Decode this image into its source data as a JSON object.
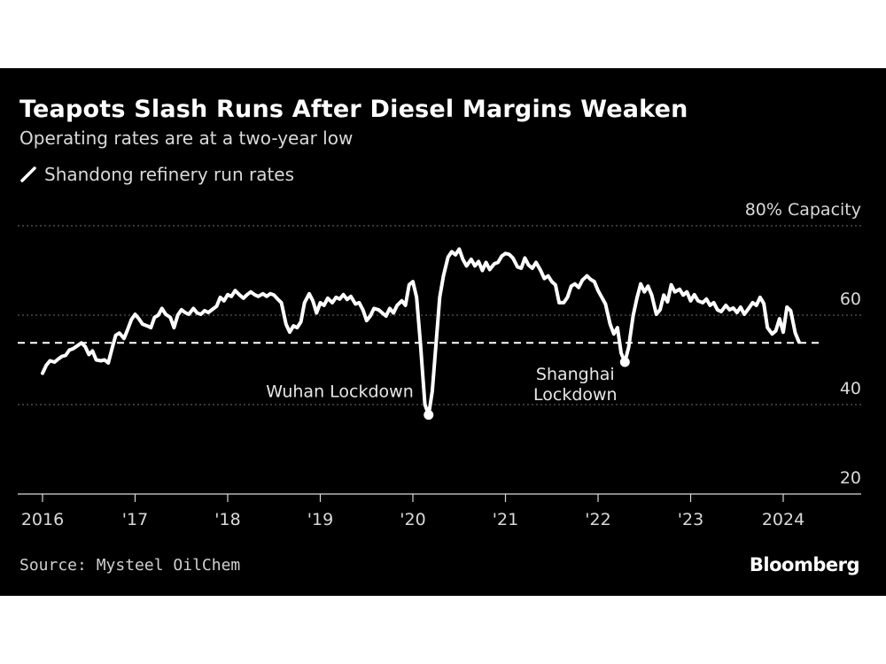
{
  "header": {
    "title": "Teapots Slash Runs After Diesel Margins Weaken",
    "subtitle": "Operating rates are at a two-year low"
  },
  "footer": {
    "source": "Source: Mysteel OilChem",
    "brand": "Bloomberg"
  },
  "colors": {
    "background": "#000000",
    "series": "#ffffff",
    "grid": "#6e6e6e"
  },
  "chart_data": {
    "type": "line",
    "title": "Teapots Slash Runs After Diesel Margins Weaken",
    "subtitle": "Operating rates are at a two-year low",
    "xlabel": "",
    "ylabel": "",
    "x_range": [
      2016.0,
      2024.85
    ],
    "ylim": [
      20,
      80
    ],
    "grid": true,
    "legend_position": "top-left",
    "x_ticks": [
      {
        "x": 2016,
        "label": "2016"
      },
      {
        "x": 2017,
        "label": "'17"
      },
      {
        "x": 2018,
        "label": "'18"
      },
      {
        "x": 2019,
        "label": "'19"
      },
      {
        "x": 2020,
        "label": "'20"
      },
      {
        "x": 2021,
        "label": "'21"
      },
      {
        "x": 2022,
        "label": "'22"
      },
      {
        "x": 2023,
        "label": "'23"
      },
      {
        "x": 2024,
        "label": "2024"
      }
    ],
    "y_ticks": [
      {
        "y": 20,
        "label": "20"
      },
      {
        "y": 40,
        "label": "40"
      },
      {
        "y": 60,
        "label": "60"
      },
      {
        "y": 80,
        "label": "80% Capacity"
      }
    ],
    "reference_line": {
      "y": 53.8,
      "style": "dashed"
    },
    "series": [
      {
        "name": "Shandong refinery run rates",
        "color": "#ffffff",
        "points": [
          [
            2016.0,
            47.0
          ],
          [
            2016.04,
            48.8
          ],
          [
            2016.08,
            49.8
          ],
          [
            2016.13,
            49.5
          ],
          [
            2016.17,
            50.2
          ],
          [
            2016.21,
            50.8
          ],
          [
            2016.25,
            51.0
          ],
          [
            2016.29,
            52.2
          ],
          [
            2016.33,
            52.5
          ],
          [
            2016.38,
            53.2
          ],
          [
            2016.42,
            53.8
          ],
          [
            2016.46,
            53.0
          ],
          [
            2016.5,
            51.2
          ],
          [
            2016.54,
            52.0
          ],
          [
            2016.58,
            50.0
          ],
          [
            2016.63,
            49.8
          ],
          [
            2016.67,
            50.0
          ],
          [
            2016.71,
            49.3
          ],
          [
            2016.75,
            52.5
          ],
          [
            2016.79,
            55.5
          ],
          [
            2016.83,
            56.0
          ],
          [
            2016.88,
            54.8
          ],
          [
            2016.92,
            56.8
          ],
          [
            2016.96,
            59.0
          ],
          [
            2017.0,
            60.2
          ],
          [
            2017.04,
            59.2
          ],
          [
            2017.08,
            58.0
          ],
          [
            2017.13,
            57.6
          ],
          [
            2017.17,
            57.2
          ],
          [
            2017.21,
            59.5
          ],
          [
            2017.25,
            60.0
          ],
          [
            2017.29,
            61.5
          ],
          [
            2017.33,
            60.2
          ],
          [
            2017.38,
            59.5
          ],
          [
            2017.42,
            57.2
          ],
          [
            2017.46,
            60.0
          ],
          [
            2017.5,
            61.2
          ],
          [
            2017.54,
            60.6
          ],
          [
            2017.58,
            60.2
          ],
          [
            2017.63,
            61.5
          ],
          [
            2017.67,
            60.5
          ],
          [
            2017.71,
            60.2
          ],
          [
            2017.75,
            61.0
          ],
          [
            2017.79,
            60.6
          ],
          [
            2017.83,
            61.2
          ],
          [
            2017.88,
            62.0
          ],
          [
            2017.92,
            64.0
          ],
          [
            2017.96,
            63.2
          ],
          [
            2018.0,
            64.6
          ],
          [
            2018.04,
            64.2
          ],
          [
            2018.08,
            65.5
          ],
          [
            2018.13,
            64.5
          ],
          [
            2018.17,
            63.8
          ],
          [
            2018.21,
            64.6
          ],
          [
            2018.25,
            65.2
          ],
          [
            2018.29,
            64.6
          ],
          [
            2018.33,
            64.2
          ],
          [
            2018.38,
            64.8
          ],
          [
            2018.42,
            64.2
          ],
          [
            2018.46,
            64.8
          ],
          [
            2018.5,
            64.5
          ],
          [
            2018.54,
            63.6
          ],
          [
            2018.58,
            62.8
          ],
          [
            2018.63,
            58.0
          ],
          [
            2018.67,
            56.2
          ],
          [
            2018.71,
            57.6
          ],
          [
            2018.75,
            57.2
          ],
          [
            2018.79,
            58.5
          ],
          [
            2018.83,
            62.8
          ],
          [
            2018.88,
            64.8
          ],
          [
            2018.92,
            63.2
          ],
          [
            2018.96,
            60.5
          ],
          [
            2019.0,
            62.8
          ],
          [
            2019.04,
            62.2
          ],
          [
            2019.08,
            63.8
          ],
          [
            2019.13,
            62.8
          ],
          [
            2019.17,
            64.0
          ],
          [
            2019.21,
            63.6
          ],
          [
            2019.25,
            64.6
          ],
          [
            2019.29,
            63.5
          ],
          [
            2019.33,
            64.2
          ],
          [
            2019.38,
            62.5
          ],
          [
            2019.42,
            62.8
          ],
          [
            2019.46,
            61.2
          ],
          [
            2019.5,
            58.8
          ],
          [
            2019.54,
            59.8
          ],
          [
            2019.58,
            61.5
          ],
          [
            2019.63,
            61.2
          ],
          [
            2019.67,
            60.5
          ],
          [
            2019.71,
            59.8
          ],
          [
            2019.75,
            61.5
          ],
          [
            2019.79,
            60.5
          ],
          [
            2019.83,
            62.2
          ],
          [
            2019.88,
            63.2
          ],
          [
            2019.92,
            62.2
          ],
          [
            2019.96,
            66.8
          ],
          [
            2020.0,
            67.5
          ],
          [
            2020.04,
            64.0
          ],
          [
            2020.08,
            54.0
          ],
          [
            2020.13,
            40.0
          ],
          [
            2020.17,
            37.7
          ],
          [
            2020.21,
            43.0
          ],
          [
            2020.25,
            53.5
          ],
          [
            2020.29,
            64.0
          ],
          [
            2020.33,
            68.8
          ],
          [
            2020.38,
            73.0
          ],
          [
            2020.42,
            74.2
          ],
          [
            2020.46,
            73.5
          ],
          [
            2020.5,
            74.8
          ],
          [
            2020.54,
            72.5
          ],
          [
            2020.58,
            71.0
          ],
          [
            2020.63,
            72.5
          ],
          [
            2020.67,
            71.0
          ],
          [
            2020.71,
            72.0
          ],
          [
            2020.75,
            70.0
          ],
          [
            2020.79,
            71.8
          ],
          [
            2020.83,
            70.2
          ],
          [
            2020.88,
            71.5
          ],
          [
            2020.92,
            71.8
          ],
          [
            2020.96,
            73.2
          ],
          [
            2021.0,
            73.8
          ],
          [
            2021.04,
            73.6
          ],
          [
            2021.08,
            72.8
          ],
          [
            2021.13,
            70.8
          ],
          [
            2021.17,
            70.5
          ],
          [
            2021.21,
            72.8
          ],
          [
            2021.25,
            71.2
          ],
          [
            2021.29,
            70.5
          ],
          [
            2021.33,
            71.8
          ],
          [
            2021.38,
            70.0
          ],
          [
            2021.42,
            68.2
          ],
          [
            2021.46,
            68.8
          ],
          [
            2021.5,
            67.5
          ],
          [
            2021.54,
            66.8
          ],
          [
            2021.58,
            62.8
          ],
          [
            2021.63,
            62.8
          ],
          [
            2021.67,
            64.0
          ],
          [
            2021.71,
            66.5
          ],
          [
            2021.75,
            67.0
          ],
          [
            2021.79,
            66.2
          ],
          [
            2021.83,
            67.8
          ],
          [
            2021.88,
            68.8
          ],
          [
            2021.92,
            68.0
          ],
          [
            2021.96,
            67.5
          ],
          [
            2022.0,
            65.5
          ],
          [
            2022.04,
            64.0
          ],
          [
            2022.08,
            62.5
          ],
          [
            2022.13,
            58.0
          ],
          [
            2022.17,
            55.8
          ],
          [
            2022.21,
            57.2
          ],
          [
            2022.25,
            51.5
          ],
          [
            2022.29,
            49.5
          ],
          [
            2022.33,
            52.8
          ],
          [
            2022.38,
            60.0
          ],
          [
            2022.42,
            63.8
          ],
          [
            2022.46,
            67.0
          ],
          [
            2022.5,
            65.2
          ],
          [
            2022.54,
            66.5
          ],
          [
            2022.58,
            64.5
          ],
          [
            2022.63,
            60.2
          ],
          [
            2022.67,
            61.2
          ],
          [
            2022.71,
            64.5
          ],
          [
            2022.75,
            63.0
          ],
          [
            2022.79,
            66.8
          ],
          [
            2022.83,
            65.2
          ],
          [
            2022.88,
            65.8
          ],
          [
            2022.92,
            64.5
          ],
          [
            2022.96,
            65.2
          ],
          [
            2023.0,
            63.2
          ],
          [
            2023.04,
            64.6
          ],
          [
            2023.08,
            63.2
          ],
          [
            2023.13,
            62.8
          ],
          [
            2023.17,
            63.6
          ],
          [
            2023.21,
            62.2
          ],
          [
            2023.25,
            62.8
          ],
          [
            2023.29,
            61.2
          ],
          [
            2023.33,
            60.8
          ],
          [
            2023.38,
            62.2
          ],
          [
            2023.42,
            61.2
          ],
          [
            2023.46,
            61.6
          ],
          [
            2023.5,
            60.6
          ],
          [
            2023.54,
            61.8
          ],
          [
            2023.58,
            60.2
          ],
          [
            2023.63,
            61.6
          ],
          [
            2023.67,
            62.8
          ],
          [
            2023.71,
            62.2
          ],
          [
            2023.75,
            64.0
          ],
          [
            2023.79,
            62.6
          ],
          [
            2023.83,
            57.2
          ],
          [
            2023.88,
            55.8
          ],
          [
            2023.92,
            56.5
          ],
          [
            2023.96,
            59.2
          ],
          [
            2024.0,
            56.2
          ],
          [
            2024.04,
            61.8
          ],
          [
            2024.08,
            61.0
          ],
          [
            2024.13,
            56.0
          ],
          [
            2024.17,
            54.0
          ]
        ]
      }
    ],
    "annotations": [
      {
        "text": "Wuhan Lockdown",
        "x": 2020.17,
        "y": 37.7
      },
      {
        "text": "Shanghai",
        "x": 2022.29,
        "y": 49.5
      },
      {
        "text": "Lockdown",
        "x": 2022.29,
        "y": 49.5
      }
    ]
  }
}
